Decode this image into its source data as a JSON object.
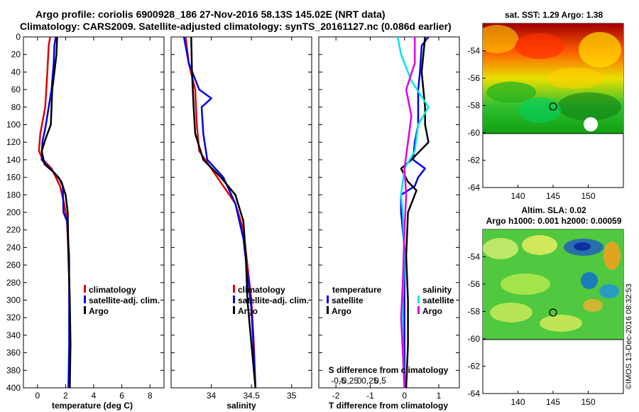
{
  "header": {
    "line1": "Argo profile: coriolis 6900928_186 27-Nov-2016 58.13S 145.02E (NRT data)",
    "line2": "Climatology: CARS2009. Satellite-adjusted climatology: synTS_20161127.nc (0.086d earlier)"
  },
  "footer_stamp": "©IMOS 13-Dec-2016 08:32:53",
  "colors": {
    "climatology": "#e00000",
    "satellite": "#0000e6",
    "argo": "#000000",
    "satellite_salinity": "#00e6e6",
    "argo_salinity": "#e000e0"
  },
  "chart_data": [
    {
      "id": "temperature",
      "type": "line",
      "xlabel": "temperature (deg C)",
      "ylabel": "",
      "xlim": [
        -1,
        9
      ],
      "ylim": [
        0,
        400
      ],
      "xticks": [
        "0",
        "2",
        "4",
        "6",
        "8"
      ],
      "yticks": [
        "0",
        "20",
        "40",
        "60",
        "80",
        "100",
        "120",
        "140",
        "160",
        "180",
        "200",
        "220",
        "240",
        "260",
        "280",
        "300",
        "320",
        "340",
        "360",
        "380",
        "400"
      ],
      "legend": {
        "position": "right-middle",
        "entries": [
          "climatology",
          "satellite-adj. clim.",
          "Argo"
        ]
      },
      "series": [
        {
          "name": "climatology",
          "color": "#e00000",
          "points": [
            [
              0.9,
              0
            ],
            [
              0.8,
              10
            ],
            [
              0.7,
              40
            ],
            [
              0.55,
              80
            ],
            [
              0.2,
              110
            ],
            [
              0.1,
              130
            ],
            [
              0.4,
              140
            ],
            [
              1.0,
              150
            ],
            [
              1.6,
              170
            ],
            [
              1.9,
              190
            ],
            [
              2.1,
              210
            ],
            [
              2.2,
              250
            ],
            [
              2.3,
              300
            ],
            [
              2.3,
              350
            ],
            [
              2.3,
              400
            ]
          ]
        },
        {
          "name": "satellite-adj. clim.",
          "color": "#0000e6",
          "points": [
            [
              1.3,
              0
            ],
            [
              1.2,
              10
            ],
            [
              1.15,
              30
            ],
            [
              1.0,
              60
            ],
            [
              0.8,
              80
            ],
            [
              0.6,
              100
            ],
            [
              0.35,
              120
            ],
            [
              0.3,
              140
            ],
            [
              0.9,
              150
            ],
            [
              1.5,
              160
            ],
            [
              1.8,
              170
            ],
            [
              1.85,
              200
            ],
            [
              2.1,
              210
            ],
            [
              2.25,
              250
            ],
            [
              2.25,
              300
            ],
            [
              2.25,
              350
            ],
            [
              2.2,
              400
            ]
          ]
        },
        {
          "name": "Argo",
          "color": "#000000",
          "points": [
            [
              1.4,
              0
            ],
            [
              1.35,
              20
            ],
            [
              1.2,
              40
            ],
            [
              1.05,
              60
            ],
            [
              1.0,
              80
            ],
            [
              0.95,
              100
            ],
            [
              0.6,
              115
            ],
            [
              0.3,
              130
            ],
            [
              0.5,
              145
            ],
            [
              1.2,
              155
            ],
            [
              1.7,
              165
            ],
            [
              2.0,
              180
            ],
            [
              2.15,
              200
            ],
            [
              2.2,
              250
            ],
            [
              2.3,
              300
            ],
            [
              2.35,
              350
            ],
            [
              2.3,
              400
            ]
          ]
        }
      ]
    },
    {
      "id": "salinity",
      "type": "line",
      "xlabel": "salinity",
      "ylabel": "",
      "xlim": [
        33.5,
        35.25
      ],
      "ylim": [
        0,
        400
      ],
      "xticks": [
        "34",
        "34.5",
        "35"
      ],
      "legend": {
        "position": "right-middle",
        "entries": [
          "climatology",
          "satellite-adj. clim.",
          "Argo"
        ]
      },
      "series": [
        {
          "name": "climatology",
          "color": "#e00000",
          "points": [
            [
              33.68,
              0
            ],
            [
              33.72,
              30
            ],
            [
              33.8,
              60
            ],
            [
              33.82,
              100
            ],
            [
              33.85,
              130
            ],
            [
              34.0,
              150
            ],
            [
              34.15,
              170
            ],
            [
              34.3,
              190
            ],
            [
              34.4,
              220
            ],
            [
              34.45,
              260
            ],
            [
              34.5,
              300
            ],
            [
              34.53,
              350
            ],
            [
              34.55,
              400
            ]
          ]
        },
        {
          "name": "satellite-adj. clim.",
          "color": "#0000e6",
          "points": [
            [
              33.66,
              0
            ],
            [
              33.72,
              30
            ],
            [
              33.85,
              60
            ],
            [
              34.0,
              70
            ],
            [
              33.88,
              80
            ],
            [
              33.9,
              110
            ],
            [
              33.95,
              140
            ],
            [
              34.15,
              160
            ],
            [
              34.3,
              190
            ],
            [
              34.4,
              230
            ],
            [
              34.45,
              270
            ],
            [
              34.5,
              310
            ],
            [
              34.53,
              360
            ],
            [
              34.55,
              400
            ]
          ]
        },
        {
          "name": "Argo",
          "color": "#000000",
          "points": [
            [
              33.75,
              0
            ],
            [
              33.76,
              40
            ],
            [
              33.78,
              80
            ],
            [
              33.8,
              110
            ],
            [
              33.9,
              140
            ],
            [
              34.12,
              160
            ],
            [
              34.3,
              180
            ],
            [
              34.4,
              210
            ],
            [
              34.43,
              250
            ],
            [
              34.45,
              300
            ],
            [
              34.5,
              350
            ],
            [
              34.55,
              400
            ]
          ]
        }
      ]
    },
    {
      "id": "difference",
      "type": "line",
      "xlabel": "T difference from climatology",
      "secondary_xlabel": "S difference from climatology",
      "xlim": [
        -2.5,
        1.6
      ],
      "ylim": [
        0,
        400
      ],
      "xticks": [
        "-2",
        "-1",
        "0",
        "1"
      ],
      "secondary_xticks": [
        "-0.5",
        "-0.25",
        "0",
        "0.25",
        "0.5"
      ],
      "legend": {
        "position": "bottom",
        "entries": [
          "temperature",
          "satellite",
          "Argo",
          "salinity",
          "satellite",
          "Argo"
        ]
      },
      "series": [
        {
          "name": "temperature satellite",
          "color": "#0000e6",
          "points": [
            [
              0.7,
              0
            ],
            [
              0.5,
              10
            ],
            [
              0.45,
              40
            ],
            [
              0.4,
              60
            ],
            [
              0.4,
              100
            ],
            [
              0.3,
              120
            ],
            [
              0.25,
              140
            ],
            [
              0.6,
              150
            ],
            [
              0.4,
              160
            ],
            [
              0.3,
              170
            ],
            [
              -0.1,
              180
            ],
            [
              -0.1,
              200
            ],
            [
              0.0,
              240
            ],
            [
              0.0,
              300
            ],
            [
              0.0,
              400
            ]
          ]
        },
        {
          "name": "temperature Argo",
          "color": "#000000",
          "points": [
            [
              0.6,
              0
            ],
            [
              0.55,
              20
            ],
            [
              0.5,
              40
            ],
            [
              0.6,
              80
            ],
            [
              0.6,
              100
            ],
            [
              0.7,
              120
            ],
            [
              0.2,
              140
            ],
            [
              -0.1,
              150
            ],
            [
              0.1,
              165
            ],
            [
              0.35,
              175
            ],
            [
              0.1,
              200
            ],
            [
              0.05,
              250
            ],
            [
              0.1,
              300
            ],
            [
              0.1,
              350
            ],
            [
              0.05,
              400
            ]
          ]
        },
        {
          "name": "salinity satellite",
          "color": "#00e6e6",
          "points": [
            [
              -0.2,
              0
            ],
            [
              -0.1,
              20
            ],
            [
              0.2,
              50
            ],
            [
              0.7,
              80
            ],
            [
              0.4,
              100
            ],
            [
              0.3,
              130
            ],
            [
              0.0,
              150
            ],
            [
              -0.1,
              180
            ],
            [
              -0.05,
              200
            ],
            [
              0.0,
              250
            ],
            [
              -0.05,
              300
            ],
            [
              -0.05,
              350
            ],
            [
              0.0,
              400
            ]
          ]
        },
        {
          "name": "salinity Argo",
          "color": "#e000e0",
          "points": [
            [
              0.3,
              0
            ],
            [
              0.3,
              30
            ],
            [
              0.05,
              60
            ],
            [
              0.2,
              90
            ],
            [
              0.1,
              120
            ],
            [
              0.0,
              150
            ],
            [
              0.05,
              180
            ],
            [
              0.0,
              220
            ],
            [
              -0.05,
              280
            ],
            [
              -0.1,
              320
            ],
            [
              -0.05,
              360
            ],
            [
              0.0,
              400
            ]
          ]
        }
      ]
    },
    {
      "id": "sst-map",
      "type": "heatmap",
      "title": "sat. SST: 1.29 Argo: 1.38",
      "xlim": [
        135,
        155
      ],
      "ylim": [
        -64,
        -52
      ],
      "xticks": [
        "140",
        "145",
        "150"
      ],
      "yticks": [
        "-54",
        "-56",
        "-58",
        "-60",
        "-62",
        "-64"
      ],
      "argo_position": [
        145.02,
        -58.13
      ]
    },
    {
      "id": "sla-map",
      "type": "heatmap",
      "title": "Altim. SLA: 0.02",
      "subtitle": "Argo h1000: 0.001 h2000: 0.00059",
      "xlim": [
        135,
        155
      ],
      "ylim": [
        -64,
        -52
      ],
      "xticks": [
        "140",
        "145",
        "150"
      ],
      "yticks": [
        "-54",
        "-56",
        "-58",
        "-60",
        "-62",
        "-64"
      ],
      "argo_position": [
        145.02,
        -58.13
      ]
    }
  ]
}
